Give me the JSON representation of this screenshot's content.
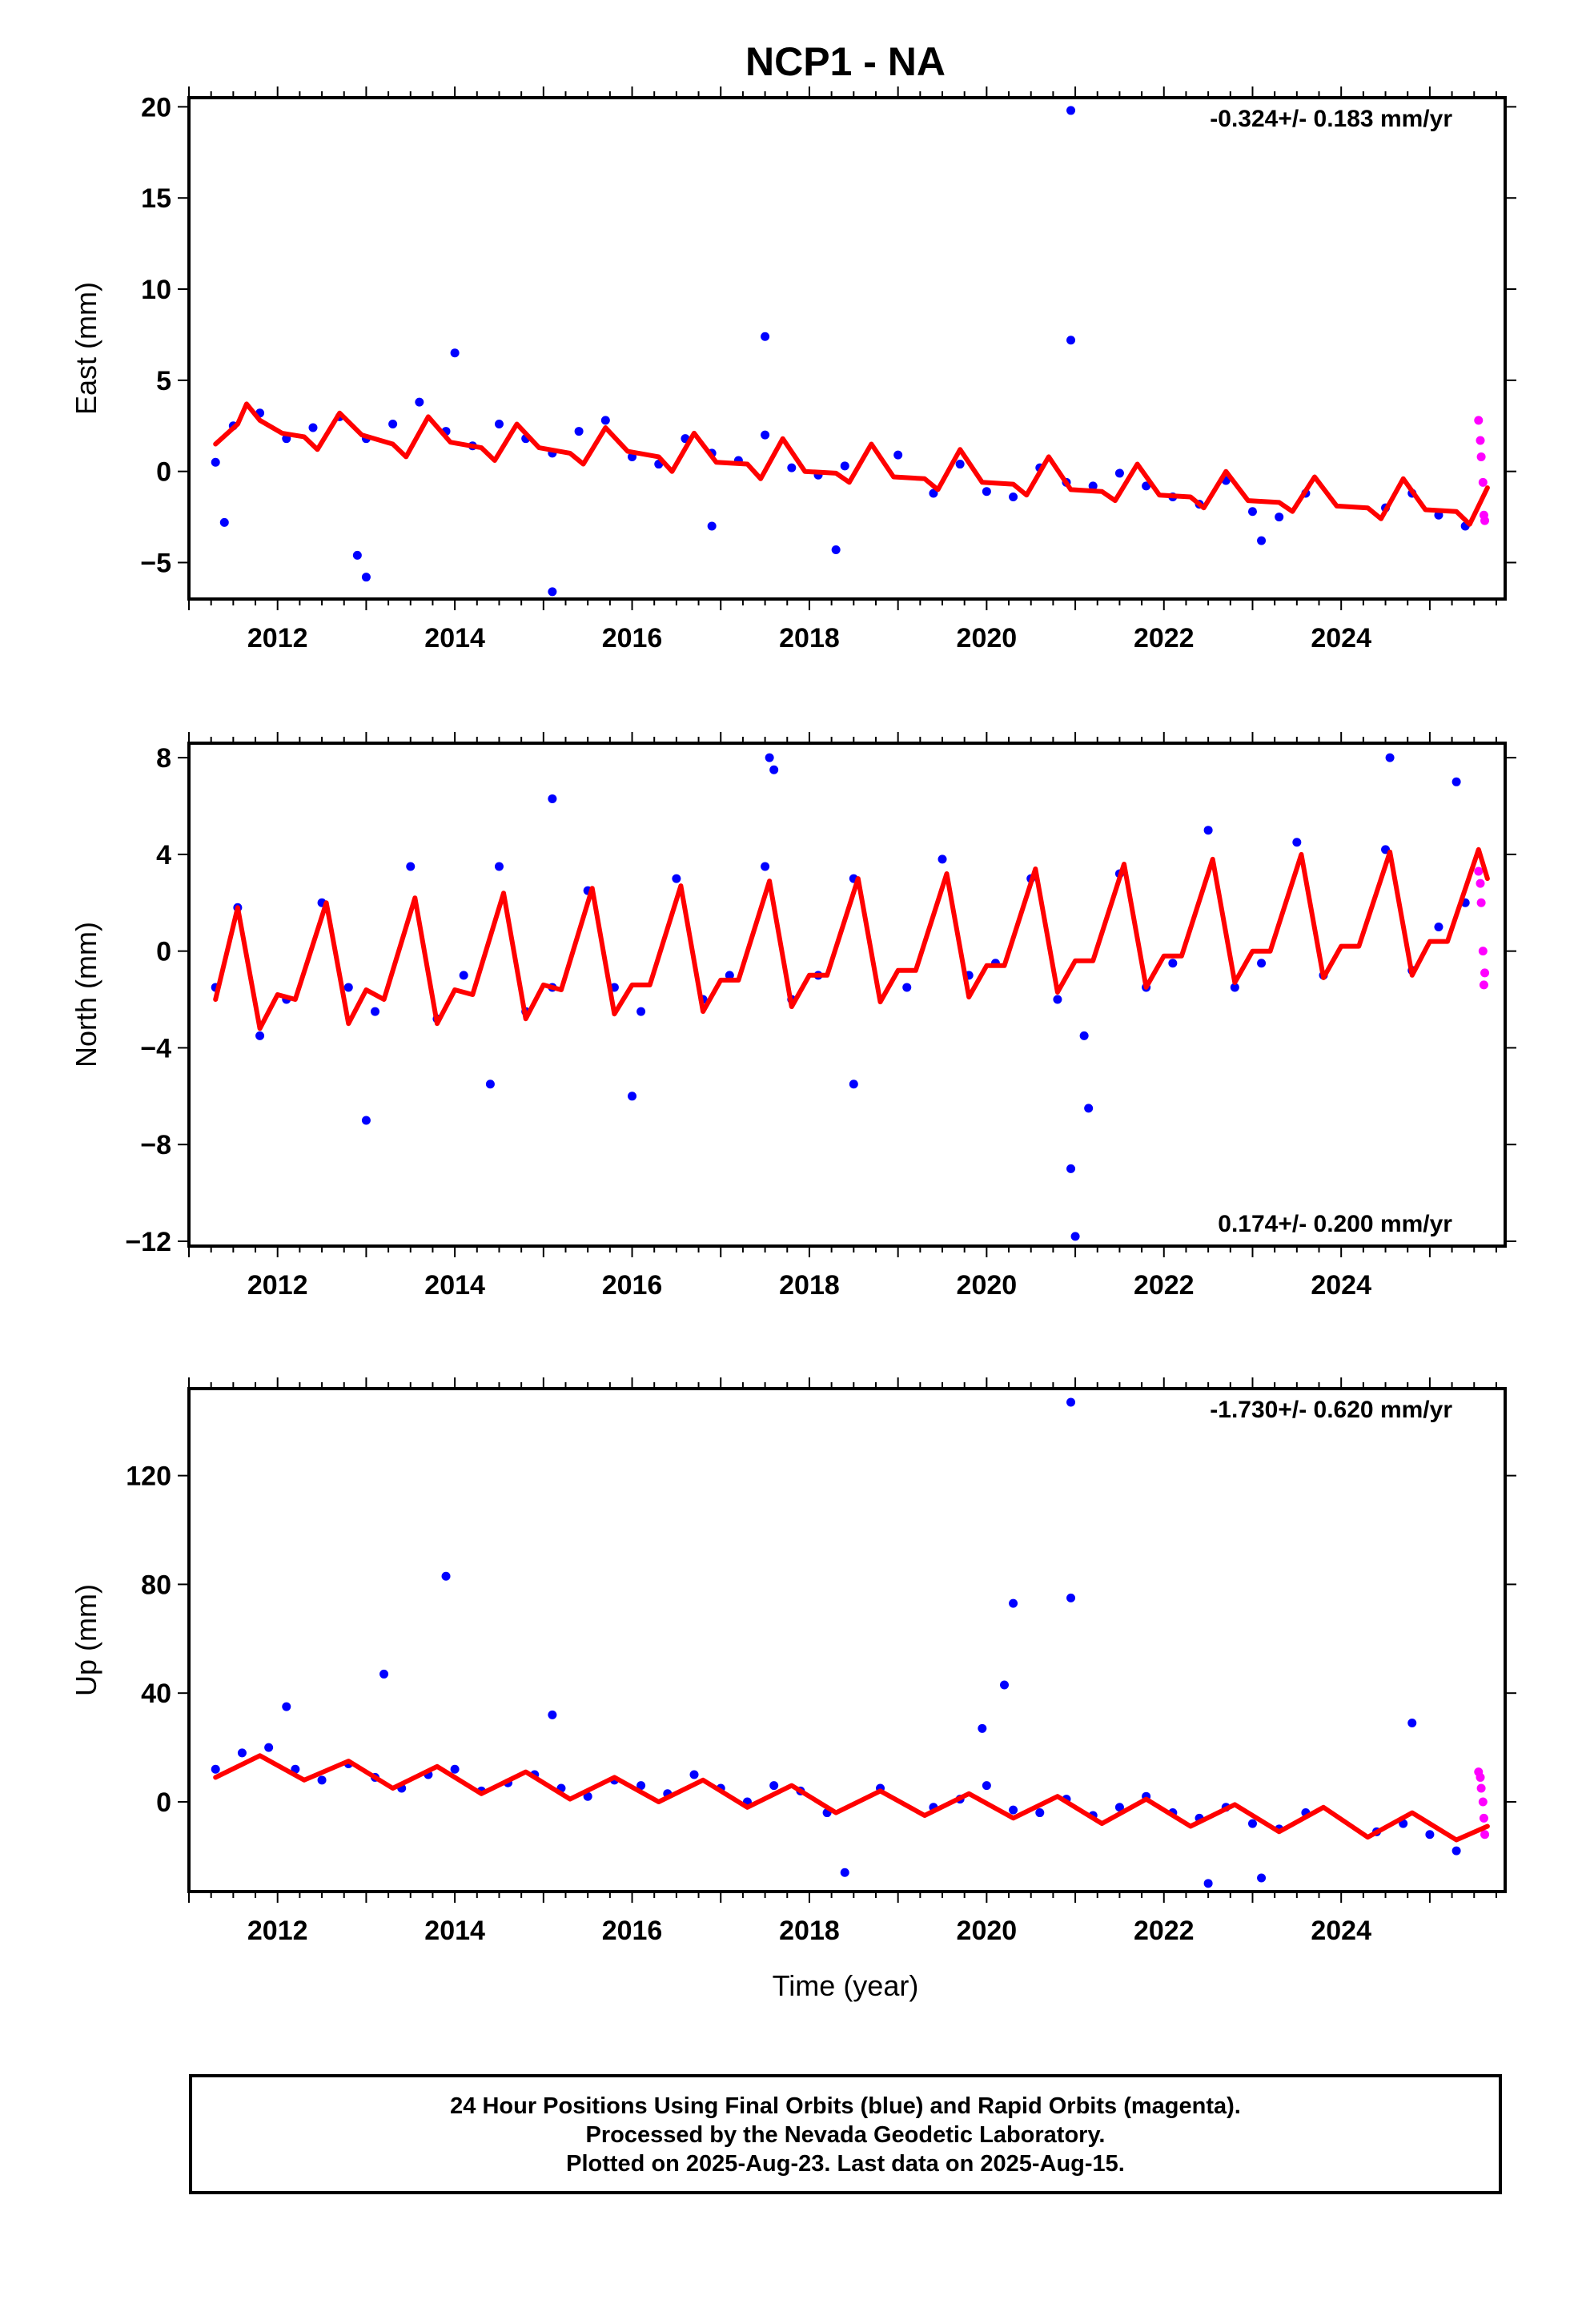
{
  "title": "NCP1 - NA",
  "x_axis_label": "Time (year)",
  "footer": {
    "line1": "24 Hour Positions Using Final Orbits (blue) and Rapid Orbits (magenta).",
    "line2": "Processed by the Nevada Geodetic Laboratory.",
    "line3": "Plotted on 2025-Aug-23. Last data on 2025-Aug-15."
  },
  "colors": {
    "final_orbits": "#0000ff",
    "rapid_orbits": "#ff00ff",
    "model": "#ff0000"
  },
  "chart_data": [
    {
      "type": "scatter",
      "panel": "east",
      "ylabel": "East (mm)",
      "rate_label": "-0.324+/- 0.183 mm/yr",
      "rate_position": "top-right",
      "xlim": [
        2011.0,
        2025.85
      ],
      "ylim": [
        -7,
        20.5
      ],
      "x_ticks": [
        2012,
        2014,
        2016,
        2018,
        2020,
        2022,
        2024
      ],
      "y_ticks": [
        -5,
        0,
        5,
        10,
        15,
        20
      ],
      "series": [
        {
          "name": "Final Orbits",
          "color": "#0000ff",
          "x": [
            2011.3,
            2011.5,
            2011.8,
            2012.1,
            2012.4,
            2012.7,
            2013.0,
            2013.3,
            2013.6,
            2013.9,
            2014.2,
            2014.5,
            2014.8,
            2015.1,
            2015.4,
            2015.7,
            2016.0,
            2016.3,
            2016.6,
            2016.9,
            2017.2,
            2017.5,
            2017.8,
            2018.1,
            2018.4,
            2019.0,
            2019.4,
            2019.7,
            2020.0,
            2020.3,
            2020.6,
            2020.9,
            2021.2,
            2021.5,
            2021.8,
            2022.1,
            2022.4,
            2022.7,
            2023.0,
            2023.3,
            2023.6,
            2024.5,
            2024.8,
            2025.1,
            2025.4,
            2012.9,
            2013.0,
            2015.1,
            2017.5,
            2020.95,
            2020.95,
            2023.1,
            2011.4,
            2014.0,
            2016.9,
            2018.3
          ],
          "y": [
            0.5,
            2.5,
            3.2,
            1.8,
            2.4,
            3.0,
            1.8,
            2.6,
            3.8,
            2.2,
            1.4,
            2.6,
            1.8,
            1.0,
            2.2,
            2.8,
            0.8,
            0.4,
            1.8,
            1.0,
            0.6,
            2.0,
            0.2,
            -0.2,
            0.3,
            0.9,
            -1.2,
            0.4,
            -1.1,
            -1.4,
            0.2,
            -0.6,
            -0.8,
            -0.1,
            -0.8,
            -1.4,
            -1.8,
            -0.5,
            -2.2,
            -2.5,
            -1.2,
            -2.0,
            -1.2,
            -2.4,
            -3.0,
            -4.6,
            -5.8,
            -6.6,
            7.4,
            19.8,
            7.2,
            -3.8,
            -2.8,
            6.5,
            -3.0,
            -4.3
          ]
        },
        {
          "name": "Rapid Orbits",
          "color": "#ff00ff",
          "x": [
            2025.55,
            2025.57,
            2025.58,
            2025.6,
            2025.61,
            2025.62
          ],
          "y": [
            2.8,
            1.7,
            0.8,
            -0.6,
            -2.4,
            -2.7
          ]
        }
      ],
      "model": {
        "name": "Model",
        "color": "#ff0000",
        "x": [
          2011.3,
          2011.55,
          2011.65,
          2011.8,
          2012.05,
          2012.3,
          2012.45,
          2012.7,
          2012.95,
          2013.3,
          2013.45,
          2013.7,
          2013.95,
          2014.3,
          2014.45,
          2014.7,
          2014.95,
          2015.3,
          2015.45,
          2015.7,
          2015.95,
          2016.3,
          2016.45,
          2016.7,
          2016.95,
          2017.3,
          2017.45,
          2017.7,
          2017.95,
          2018.3,
          2018.45,
          2018.7,
          2018.95,
          2019.3,
          2019.45,
          2019.7,
          2019.95,
          2020.3,
          2020.45,
          2020.7,
          2020.95,
          2021.3,
          2021.45,
          2021.7,
          2021.95,
          2022.3,
          2022.45,
          2022.7,
          2022.95,
          2023.3,
          2023.45,
          2023.7,
          2023.95,
          2024.3,
          2024.45,
          2024.7,
          2024.95,
          2025.3,
          2025.45,
          2025.65
        ],
        "y": [
          1.5,
          2.6,
          3.7,
          2.8,
          2.1,
          1.9,
          1.2,
          3.2,
          2.0,
          1.5,
          0.8,
          3.0,
          1.6,
          1.3,
          0.6,
          2.6,
          1.3,
          1.0,
          0.4,
          2.4,
          1.1,
          0.8,
          0.0,
          2.1,
          0.5,
          0.4,
          -0.4,
          1.8,
          0.0,
          -0.1,
          -0.6,
          1.5,
          -0.3,
          -0.4,
          -1.0,
          1.2,
          -0.6,
          -0.7,
          -1.3,
          0.8,
          -1.0,
          -1.1,
          -1.6,
          0.4,
          -1.3,
          -1.4,
          -2.0,
          0.0,
          -1.6,
          -1.7,
          -2.2,
          -0.3,
          -1.9,
          -2.0,
          -2.6,
          -0.4,
          -2.1,
          -2.2,
          -2.9,
          -0.9
        ]
      }
    },
    {
      "type": "scatter",
      "panel": "north",
      "ylabel": "North (mm)",
      "rate_label": "0.174+/- 0.200 mm/yr",
      "rate_position": "bottom-right",
      "xlim": [
        2011.0,
        2025.85
      ],
      "ylim": [
        -12.2,
        8.6
      ],
      "x_ticks": [
        2012,
        2014,
        2016,
        2018,
        2020,
        2022,
        2024
      ],
      "y_ticks": [
        -12,
        -8,
        -4,
        0,
        4,
        8
      ],
      "series": [
        {
          "name": "Final Orbits",
          "color": "#0000ff",
          "x": [
            2011.3,
            2011.55,
            2011.8,
            2012.1,
            2012.5,
            2012.8,
            2013.1,
            2013.5,
            2013.8,
            2014.1,
            2014.5,
            2014.8,
            2015.1,
            2015.5,
            2015.8,
            2016.1,
            2016.5,
            2016.8,
            2017.1,
            2017.5,
            2017.8,
            2018.1,
            2018.5,
            2019.1,
            2019.5,
            2019.8,
            2020.1,
            2020.5,
            2020.8,
            2021.1,
            2021.5,
            2021.8,
            2022.1,
            2022.5,
            2022.8,
            2023.1,
            2023.5,
            2023.8,
            2024.5,
            2024.8,
            2025.1,
            2025.4,
            2013.0,
            2017.55,
            2017.6,
            2020.95,
            2021.15,
            2021.0,
            2024.55,
            2025.3,
            2016.0,
            2014.4,
            2015.1,
            2018.5
          ],
          "y": [
            -1.5,
            1.8,
            -3.5,
            -2.0,
            2.0,
            -1.5,
            -2.5,
            3.5,
            -2.8,
            -1.0,
            3.5,
            -2.5,
            -1.5,
            2.5,
            -1.5,
            -2.5,
            3.0,
            -2.0,
            -1.0,
            3.5,
            -2.0,
            -1.0,
            3.0,
            -1.5,
            3.8,
            -1.0,
            -0.5,
            3.0,
            -2.0,
            -3.5,
            3.2,
            -1.5,
            -0.5,
            5.0,
            -1.5,
            -0.5,
            4.5,
            -1.0,
            4.2,
            -0.8,
            1.0,
            2.0,
            -7.0,
            8.0,
            7.5,
            -9.0,
            -6.5,
            -11.8,
            8.0,
            7.0,
            -6.0,
            -5.5,
            6.3,
            -5.5
          ]
        },
        {
          "name": "Rapid Orbits",
          "color": "#ff00ff",
          "x": [
            2025.55,
            2025.57,
            2025.58,
            2025.6,
            2025.61,
            2025.62
          ],
          "y": [
            3.3,
            2.8,
            2.0,
            0.0,
            -1.4,
            -0.9
          ]
        }
      ],
      "model": {
        "name": "Model",
        "color": "#ff0000",
        "x": [
          2011.3,
          2011.55,
          2011.8,
          2012.0,
          2012.2,
          2012.55,
          2012.8,
          2013.0,
          2013.2,
          2013.55,
          2013.8,
          2014.0,
          2014.2,
          2014.55,
          2014.8,
          2015.0,
          2015.2,
          2015.55,
          2015.8,
          2016.0,
          2016.2,
          2016.55,
          2016.8,
          2017.0,
          2017.2,
          2017.55,
          2017.8,
          2018.0,
          2018.2,
          2018.55,
          2018.8,
          2019.0,
          2019.2,
          2019.55,
          2019.8,
          2020.0,
          2020.2,
          2020.55,
          2020.8,
          2021.0,
          2021.2,
          2021.55,
          2021.8,
          2022.0,
          2022.2,
          2022.55,
          2022.8,
          2023.0,
          2023.2,
          2023.55,
          2023.8,
          2024.0,
          2024.2,
          2024.55,
          2024.8,
          2025.0,
          2025.2,
          2025.55,
          2025.65
        ],
        "y": [
          -2.0,
          1.8,
          -3.2,
          -1.8,
          -2.0,
          2.0,
          -3.0,
          -1.6,
          -2.0,
          2.2,
          -3.0,
          -1.6,
          -1.8,
          2.4,
          -2.8,
          -1.4,
          -1.6,
          2.6,
          -2.6,
          -1.4,
          -1.4,
          2.7,
          -2.5,
          -1.2,
          -1.2,
          2.9,
          -2.3,
          -1.0,
          -1.0,
          3.0,
          -2.1,
          -0.8,
          -0.8,
          3.2,
          -1.9,
          -0.6,
          -0.6,
          3.4,
          -1.7,
          -0.4,
          -0.4,
          3.6,
          -1.5,
          -0.2,
          -0.2,
          3.8,
          -1.3,
          0.0,
          0.0,
          4.0,
          -1.1,
          0.2,
          0.2,
          4.1,
          -1.0,
          0.4,
          0.4,
          4.2,
          3.0
        ]
      }
    },
    {
      "type": "scatter",
      "panel": "up",
      "ylabel": "Up (mm)",
      "rate_label": "-1.730+/- 0.620 mm/yr",
      "rate_position": "top-right",
      "xlim": [
        2011.0,
        2025.85
      ],
      "ylim": [
        -33,
        152
      ],
      "x_ticks": [
        2012,
        2014,
        2016,
        2018,
        2020,
        2022,
        2024
      ],
      "y_ticks": [
        0,
        40,
        80,
        120
      ],
      "series": [
        {
          "name": "Final Orbits",
          "color": "#0000ff",
          "x": [
            2011.3,
            2011.6,
            2011.9,
            2012.2,
            2012.5,
            2012.8,
            2013.1,
            2013.4,
            2013.7,
            2014.0,
            2014.3,
            2014.6,
            2014.9,
            2015.2,
            2015.5,
            2015.8,
            2016.1,
            2016.4,
            2016.7,
            2017.0,
            2017.3,
            2017.6,
            2017.9,
            2018.2,
            2018.8,
            2019.4,
            2019.7,
            2020.0,
            2020.3,
            2020.6,
            2020.9,
            2021.2,
            2021.5,
            2021.8,
            2022.1,
            2022.4,
            2022.7,
            2023.0,
            2023.3,
            2023.6,
            2024.4,
            2024.7,
            2025.0,
            2025.3,
            2013.9,
            2013.2,
            2015.1,
            2020.3,
            2020.95,
            2020.95,
            2020.2,
            2019.95,
            2024.8,
            2012.1,
            2018.4,
            2022.5,
            2023.1
          ],
          "y": [
            12,
            18,
            20,
            12,
            8,
            14,
            9,
            5,
            10,
            12,
            4,
            7,
            10,
            5,
            2,
            8,
            6,
            3,
            10,
            5,
            0,
            6,
            4,
            -4,
            5,
            -2,
            1,
            6,
            -3,
            -4,
            1,
            -5,
            -2,
            2,
            -4,
            -6,
            -2,
            -8,
            -10,
            -4,
            -11,
            -8,
            -12,
            -18,
            83,
            47,
            32,
            73,
            75,
            147,
            43,
            27,
            29,
            35,
            -26,
            -30,
            -28
          ]
        },
        {
          "name": "Rapid Orbits",
          "color": "#ff00ff",
          "x": [
            2025.55,
            2025.57,
            2025.58,
            2025.6,
            2025.61,
            2025.62
          ],
          "y": [
            11,
            9,
            5,
            0,
            -6,
            -12
          ]
        }
      ],
      "model": {
        "name": "Model",
        "color": "#ff0000",
        "x": [
          2011.3,
          2011.8,
          2012.3,
          2012.8,
          2013.3,
          2013.8,
          2014.3,
          2014.8,
          2015.3,
          2015.8,
          2016.3,
          2016.8,
          2017.3,
          2017.8,
          2018.3,
          2018.8,
          2019.3,
          2019.8,
          2020.3,
          2020.8,
          2021.3,
          2021.8,
          2022.3,
          2022.8,
          2023.3,
          2023.8,
          2024.3,
          2024.8,
          2025.3,
          2025.65
        ],
        "y": [
          9,
          17,
          8,
          15,
          5,
          13,
          3,
          11,
          1,
          9,
          0,
          8,
          -2,
          6,
          -4,
          4,
          -5,
          3,
          -6,
          2,
          -8,
          1,
          -9,
          -1,
          -11,
          -2,
          -13,
          -4,
          -14,
          -9
        ]
      }
    }
  ]
}
